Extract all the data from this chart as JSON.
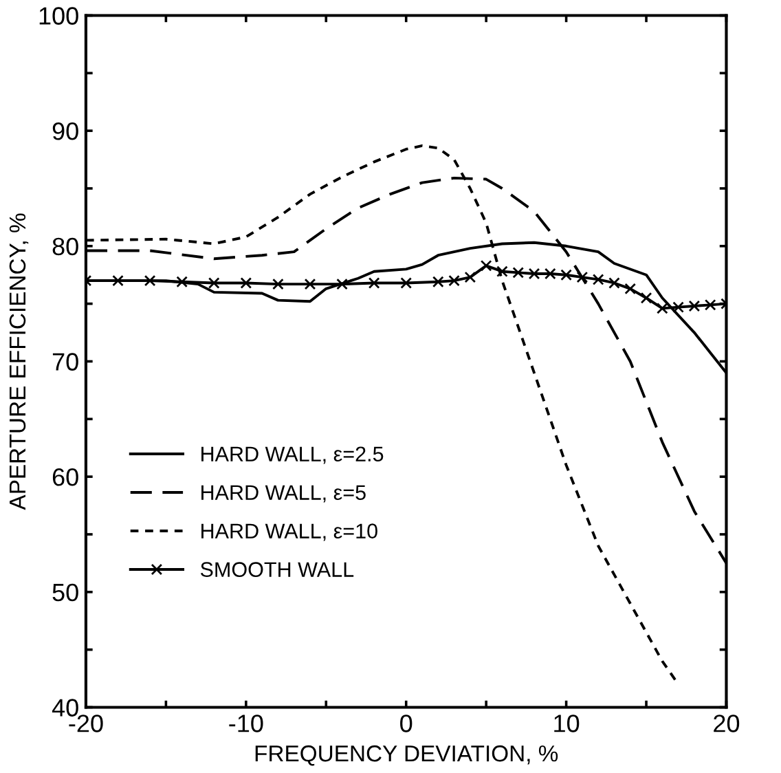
{
  "chart_data": {
    "type": "line",
    "xlabel": "FREQUENCY DEVIATION, %",
    "ylabel": "APERTURE EFFICIENCY, %",
    "xlim": [
      -20,
      20
    ],
    "ylim": [
      40,
      100
    ],
    "xticks": [
      -20,
      {
        "value": -15,
        "label": null
      },
      -10,
      {
        "value": -5,
        "label": null
      },
      0,
      {
        "value": 5,
        "label": null
      },
      10,
      {
        "value": 15,
        "label": null
      },
      20
    ],
    "yticks": [
      40,
      {
        "value": 45,
        "label": null
      },
      50,
      {
        "value": 55,
        "label": null
      },
      60,
      {
        "value": 65,
        "label": null
      },
      70,
      {
        "value": 75,
        "label": null
      },
      80,
      {
        "value": 85,
        "label": null
      },
      90,
      {
        "value": 95,
        "label": null
      },
      100
    ],
    "grid": false,
    "legend": "left",
    "series": [
      {
        "name": "HARD WALL, ε=2.5",
        "color": "#000000",
        "line_style": "solid",
        "marker": "none",
        "x": [
          -20,
          -15,
          -13,
          -12,
          -9,
          -8,
          -6,
          -5,
          -3,
          -2,
          0,
          1,
          2,
          4,
          6,
          8,
          10,
          12,
          13,
          15,
          16,
          18,
          20
        ],
        "values": [
          77,
          77,
          76.7,
          76,
          75.9,
          75.3,
          75.2,
          76.3,
          77.2,
          77.8,
          78,
          78.4,
          79.2,
          79.8,
          80.2,
          80.3,
          80,
          79.5,
          78.5,
          77.5,
          75.5,
          72.5,
          69
        ]
      },
      {
        "name": "HARD WALL, ε=5",
        "color": "#000000",
        "line_style": "dashed",
        "marker": "none",
        "x": [
          -20,
          -16,
          -12,
          -9,
          -7,
          -5,
          -3,
          -1,
          1,
          3,
          5,
          6,
          8,
          10,
          12,
          14,
          16,
          18,
          20
        ],
        "values": [
          79.6,
          79.6,
          78.9,
          79.2,
          79.5,
          81.5,
          83.3,
          84.5,
          85.5,
          85.9,
          85.8,
          85,
          83,
          79.5,
          75,
          70,
          63,
          57,
          52.5
        ]
      },
      {
        "name": "HARD WALL, ε=10",
        "color": "#000000",
        "line_style": "dotted",
        "marker": "none",
        "x": [
          -20,
          -15,
          -12,
          -10,
          -8,
          -6,
          -4,
          -2,
          0,
          1,
          2,
          3,
          4,
          5,
          6,
          8,
          10,
          12,
          14,
          16,
          17
        ],
        "values": [
          80.5,
          80.6,
          80.2,
          80.8,
          82.5,
          84.5,
          86,
          87.3,
          88.4,
          88.7,
          88.5,
          87.5,
          85,
          82,
          77,
          69,
          61,
          54,
          49,
          44,
          42
        ]
      },
      {
        "name": "SMOOTH WALL",
        "color": "#000000",
        "line_style": "solid",
        "marker": "cross",
        "x": [
          -20,
          -18,
          -16,
          -14,
          -12,
          -10,
          -8,
          -6,
          -4,
          -2,
          0,
          2,
          3,
          4,
          5,
          6,
          7,
          8,
          9,
          10,
          11,
          12,
          13,
          14,
          15,
          16,
          17,
          18,
          19,
          20
        ],
        "values": [
          77,
          77,
          77,
          76.9,
          76.8,
          76.8,
          76.7,
          76.7,
          76.7,
          76.8,
          76.8,
          76.9,
          77,
          77.3,
          78.3,
          77.8,
          77.7,
          77.6,
          77.6,
          77.5,
          77.3,
          77.1,
          76.8,
          76.3,
          75.5,
          74.6,
          74.7,
          74.8,
          74.9,
          75
        ]
      }
    ]
  }
}
